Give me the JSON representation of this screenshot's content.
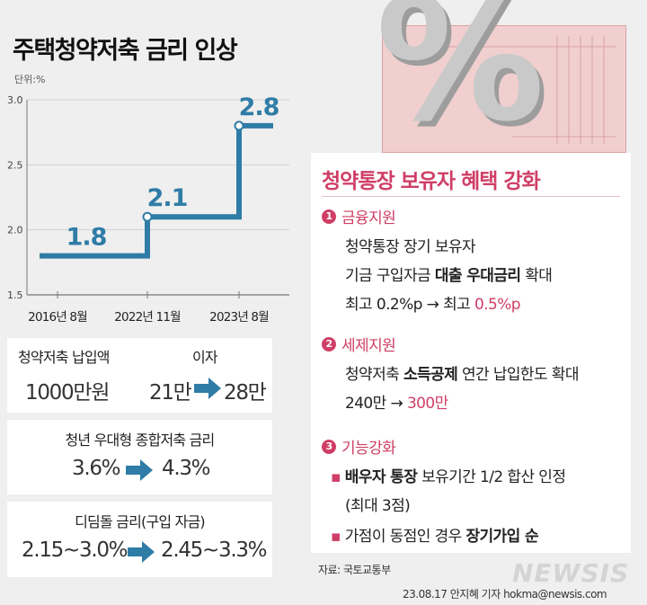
{
  "title": "주택청약저축 금리 인상",
  "unit": "단위:%",
  "chart_data": {
    "type": "line",
    "step": true,
    "title": "주택청약저축 금리 인상",
    "unit": "단위:%",
    "categories": [
      "2016년 8월",
      "2022년 11월",
      "2023년 8월"
    ],
    "values": [
      1.8,
      2.1,
      2.8
    ],
    "value_labels": [
      "1.8",
      "2.1",
      "2.8"
    ],
    "y_ticks": [
      "1.5",
      "2.0",
      "2.5",
      "3.0"
    ],
    "ylim": [
      1.5,
      3.0
    ],
    "line_color": "#2f7ca6"
  },
  "box1": {
    "label": "청약저축 납입액",
    "label2": "이자",
    "amount": "1000만원",
    "from": "21만",
    "to": "28만"
  },
  "box2": {
    "title": "청년 우대형 종합저축 금리",
    "from": "3.6%",
    "to": "4.3%"
  },
  "box3": {
    "title": "디딤돌 금리(구입 자금)",
    "from": "2.15~3.0%",
    "to": "2.45~3.3%"
  },
  "pct_symbol": "%",
  "panel": {
    "title": "청약통장 보유자 혜택 강화",
    "s1": {
      "num": "1",
      "title": "금융지원",
      "l1": "청약통장 장기 보유자",
      "l2a": "기금 구입자금 ",
      "l2b": "대출 우대금리",
      "l2c": " 확대",
      "l3a": "최고 0.2%p → 최고 ",
      "l3b": "0.5%p"
    },
    "s2": {
      "num": "2",
      "title": "세제지원",
      "l1a": "청약저축 ",
      "l1b": "소득공제",
      "l1c": " 연간 납입한도 확대",
      "l2a": "240만 → ",
      "l2b": "300만"
    },
    "s3": {
      "num": "3",
      "title": "기능강화",
      "bullet": "▪",
      "l1b": "배우자 통장",
      "l1c": " 보유기간 1/2 합산 인정",
      "l2": "(최대 3점)",
      "l3a": "가점이 동점인 경우 ",
      "l3b": "장기가입 순"
    }
  },
  "source": "자료: 국토교통부",
  "logo": "NEWSIS",
  "credit": "23.08.17 안지혜 기자  hokma@newsis.com",
  "colors": {
    "blue": "#2f7ca6",
    "pink": "#cf3e66",
    "bg": "#efefef"
  }
}
